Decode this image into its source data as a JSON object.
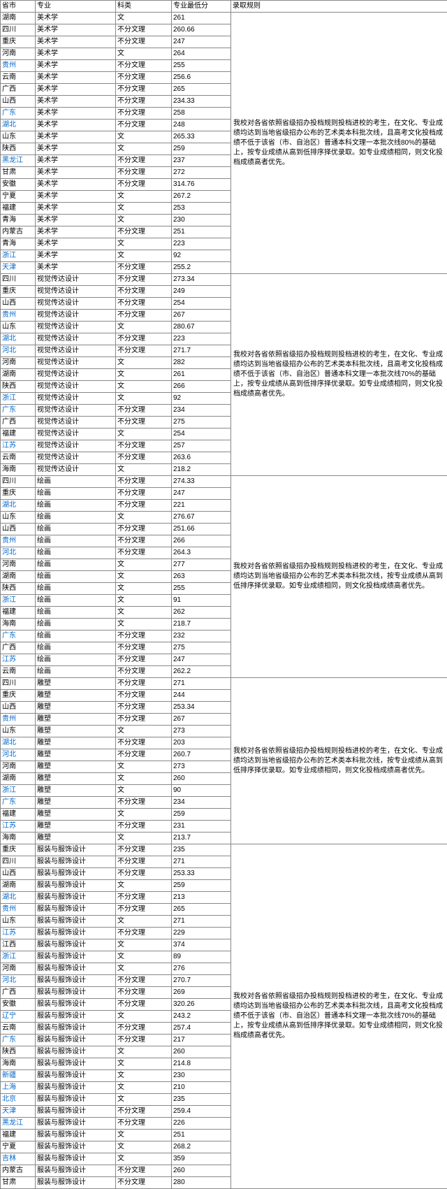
{
  "headers": [
    "省市",
    "专业",
    "科类",
    "专业最低分",
    "录取规则"
  ],
  "link_provinces": [
    "贵州",
    "广东",
    "湖北",
    "浙江",
    "江苏",
    "天津",
    "河北",
    "辽宁",
    "新疆",
    "上海",
    "北京",
    "黑龙江",
    "吉林"
  ],
  "groups": [
    {
      "rule": "我校对各省依照省级招办投档规则投档进校的考生，在文化、专业成绩均达到当地省级招办公布的艺术类本科批次线，且高考文化投档成绩不低于该省（市、自治区）普通本科文理一本批次线80%的基础上，按专业成绩从高到低排序择优录取。如专业成绩相同，则文化投档成绩高者优先。",
      "rows": [
        [
          "湖南",
          "美术学",
          "文",
          "261"
        ],
        [
          "四川",
          "美术学",
          "不分文理",
          "260.66"
        ],
        [
          "重庆",
          "美术学",
          "不分文理",
          "247"
        ],
        [
          "河南",
          "美术学",
          "文",
          "264"
        ],
        [
          "贵州",
          "美术学",
          "不分文理",
          "255"
        ],
        [
          "云南",
          "美术学",
          "不分文理",
          "256.6"
        ],
        [
          "广西",
          "美术学",
          "不分文理",
          "265"
        ],
        [
          "山西",
          "美术学",
          "不分文理",
          "234.33"
        ],
        [
          "广东",
          "美术学",
          "不分文理",
          "258"
        ],
        [
          "湖北",
          "美术学",
          "不分文理",
          "248"
        ],
        [
          "山东",
          "美术学",
          "文",
          "265.33"
        ],
        [
          "陕西",
          "美术学",
          "文",
          "259"
        ],
        [
          "黑龙江",
          "美术学",
          "不分文理",
          "237"
        ],
        [
          "甘肃",
          "美术学",
          "不分文理",
          "272"
        ],
        [
          "安徽",
          "美术学",
          "不分文理",
          "314.76"
        ],
        [
          "宁夏",
          "美术学",
          "文",
          "267.2"
        ],
        [
          "福建",
          "美术学",
          "文",
          "253"
        ],
        [
          "青海",
          "美术学",
          "文",
          "230"
        ],
        [
          "内蒙古",
          "美术学",
          "不分文理",
          "251"
        ],
        [
          "青海",
          "美术学",
          "文",
          "223"
        ],
        [
          "浙江",
          "美术学",
          "文",
          "92"
        ],
        [
          "天津",
          "美术学",
          "不分文理",
          "255.2"
        ]
      ]
    },
    {
      "rule": "我校对各省依照省级招办投档规则投档进校的考生，在文化、专业成绩均达到当地省级招办公布的艺术类本科批次线，且高考文化投档成绩不低于该省（市、自治区）普通本科文理一本批次线70%的基础上，按专业成绩从高到低排序择优录取。如专业成绩相同，则文化投档成绩高者优先。",
      "rows": [
        [
          "四川",
          "视觉传达设计",
          "不分文理",
          "273.34"
        ],
        [
          "重庆",
          "视觉传达设计",
          "不分文理",
          "249"
        ],
        [
          "山西",
          "视觉传达设计",
          "不分文理",
          "254"
        ],
        [
          "贵州",
          "视觉传达设计",
          "不分文理",
          "267"
        ],
        [
          "山东",
          "视觉传达设计",
          "文",
          "280.67"
        ],
        [
          "湖北",
          "视觉传达设计",
          "不分文理",
          "223"
        ],
        [
          "河北",
          "视觉传达设计",
          "不分文理",
          "271.7"
        ],
        [
          "河南",
          "视觉传达设计",
          "文",
          "282"
        ],
        [
          "湖南",
          "视觉传达设计",
          "文",
          "261"
        ],
        [
          "陕西",
          "视觉传达设计",
          "文",
          "266"
        ],
        [
          "浙江",
          "视觉传达设计",
          "文",
          "92"
        ],
        [
          "广东",
          "视觉传达设计",
          "不分文理",
          "234"
        ],
        [
          "广西",
          "视觉传达设计",
          "不分文理",
          "275"
        ],
        [
          "福建",
          "视觉传达设计",
          "文",
          "254"
        ],
        [
          "江苏",
          "视觉传达设计",
          "不分文理",
          "257"
        ],
        [
          "云南",
          "视觉传达设计",
          "不分文理",
          "263.6"
        ],
        [
          "海南",
          "视觉传达设计",
          "文",
          "218.2"
        ]
      ]
    },
    {
      "rule": "我校对各省依照省级招办投档规则投档进校的考生，在文化、专业成绩均达到当地省级招办公布的艺术类本科批次线，按专业成绩从高到低排序择优录取。如专业成绩相同，则文化投档成绩高者优先。",
      "rows": [
        [
          "四川",
          "绘画",
          "不分文理",
          "274.33"
        ],
        [
          "重庆",
          "绘画",
          "不分文理",
          "247"
        ],
        [
          "湖北",
          "绘画",
          "不分文理",
          "221"
        ],
        [
          "山东",
          "绘画",
          "文",
          "276.67"
        ],
        [
          "山西",
          "绘画",
          "不分文理",
          "251.66"
        ],
        [
          "贵州",
          "绘画",
          "不分文理",
          "266"
        ],
        [
          "河北",
          "绘画",
          "不分文理",
          "264.3"
        ],
        [
          "河南",
          "绘画",
          "文",
          "277"
        ],
        [
          "湖南",
          "绘画",
          "文",
          "263"
        ],
        [
          "陕西",
          "绘画",
          "文",
          "255"
        ],
        [
          "浙江",
          "绘画",
          "文",
          "91"
        ],
        [
          "福建",
          "绘画",
          "文",
          "262"
        ],
        [
          "海南",
          "绘画",
          "文",
          "218.7"
        ],
        [
          "广东",
          "绘画",
          "不分文理",
          "232"
        ],
        [
          "广西",
          "绘画",
          "不分文理",
          "275"
        ],
        [
          "江苏",
          "绘画",
          "不分文理",
          "247"
        ],
        [
          "云南",
          "绘画",
          "不分文理",
          "262.2"
        ]
      ]
    },
    {
      "rule": "我校对各省依照省级招办投档规则投档进校的考生，在文化、专业成绩均达到当地省级招办公布的艺术类本科批次线，按专业成绩从高到低排序择优录取。如专业成绩相同，则文化投档成绩高者优先。",
      "rows": [
        [
          "四川",
          "雕塑",
          "不分文理",
          "271"
        ],
        [
          "重庆",
          "雕塑",
          "不分文理",
          "244"
        ],
        [
          "山西",
          "雕塑",
          "不分文理",
          "253.34"
        ],
        [
          "贵州",
          "雕塑",
          "不分文理",
          "267"
        ],
        [
          "山东",
          "雕塑",
          "文",
          "273"
        ],
        [
          "湖北",
          "雕塑",
          "不分文理",
          "203"
        ],
        [
          "河北",
          "雕塑",
          "不分文理",
          "260.7"
        ],
        [
          "河南",
          "雕塑",
          "文",
          "273"
        ],
        [
          "湖南",
          "雕塑",
          "文",
          "260"
        ],
        [
          "浙江",
          "雕塑",
          "文",
          "90"
        ],
        [
          "广东",
          "雕塑",
          "不分文理",
          "234"
        ],
        [
          "福建",
          "雕塑",
          "文",
          "259"
        ],
        [
          "江苏",
          "雕塑",
          "不分文理",
          "231"
        ],
        [
          "海南",
          "雕塑",
          "文",
          "213.7"
        ]
      ]
    },
    {
      "rule": "我校对各省依照省级招办投档规则投档进校的考生，在文化、专业成绩均达到当地省级招办公布的艺术类本科批次线，且高考文化投档成绩不低于该省（市、自治区）普通本科文理一本批次线70%的基础上，按专业成绩从高到低排序择优录取。如专业成绩相同，则文化投档成绩高者优先。",
      "rows": [
        [
          "重庆",
          "服装与服饰设计",
          "不分文理",
          "235"
        ],
        [
          "四川",
          "服装与服饰设计",
          "不分文理",
          "271"
        ],
        [
          "山西",
          "服装与服饰设计",
          "不分文理",
          "253.33"
        ],
        [
          "湖南",
          "服装与服饰设计",
          "文",
          "259"
        ],
        [
          "湖北",
          "服装与服饰设计",
          "不分文理",
          "213"
        ],
        [
          "贵州",
          "服装与服饰设计",
          "不分文理",
          "265"
        ],
        [
          "山东",
          "服装与服饰设计",
          "文",
          "271"
        ],
        [
          "江苏",
          "服装与服饰设计",
          "不分文理",
          "229"
        ],
        [
          "江西",
          "服装与服饰设计",
          "文",
          "374"
        ],
        [
          "浙江",
          "服装与服饰设计",
          "文",
          "89"
        ],
        [
          "河南",
          "服装与服饰设计",
          "文",
          "276"
        ],
        [
          "河北",
          "服装与服饰设计",
          "不分文理",
          "270.7"
        ],
        [
          "广西",
          "服装与服饰设计",
          "不分文理",
          "269"
        ],
        [
          "安徽",
          "服装与服饰设计",
          "不分文理",
          "320.26"
        ],
        [
          "辽宁",
          "服装与服饰设计",
          "文",
          "243.2"
        ],
        [
          "云南",
          "服装与服饰设计",
          "不分文理",
          "257.4"
        ],
        [
          "广东",
          "服装与服饰设计",
          "不分文理",
          "217"
        ],
        [
          "陕西",
          "服装与服饰设计",
          "文",
          "260"
        ],
        [
          "海南",
          "服装与服饰设计",
          "文",
          "214.8"
        ],
        [
          "新疆",
          "服装与服饰设计",
          "文",
          "230"
        ],
        [
          "上海",
          "服装与服饰设计",
          "文",
          "210"
        ],
        [
          "北京",
          "服装与服饰设计",
          "文",
          "235"
        ],
        [
          "天津",
          "服装与服饰设计",
          "不分文理",
          "259.4"
        ],
        [
          "黑龙江",
          "服装与服饰设计",
          "不分文理",
          "226"
        ],
        [
          "福建",
          "服装与服饰设计",
          "文",
          "251"
        ],
        [
          "宁夏",
          "服装与服饰设计",
          "文",
          "268.2"
        ],
        [
          "吉林",
          "服装与服饰设计",
          "文",
          "359"
        ],
        [
          "内蒙古",
          "服装与服饰设计",
          "不分文理",
          "260"
        ],
        [
          "甘肃",
          "服装与服饰设计",
          "不分文理",
          "280"
        ]
      ]
    }
  ]
}
